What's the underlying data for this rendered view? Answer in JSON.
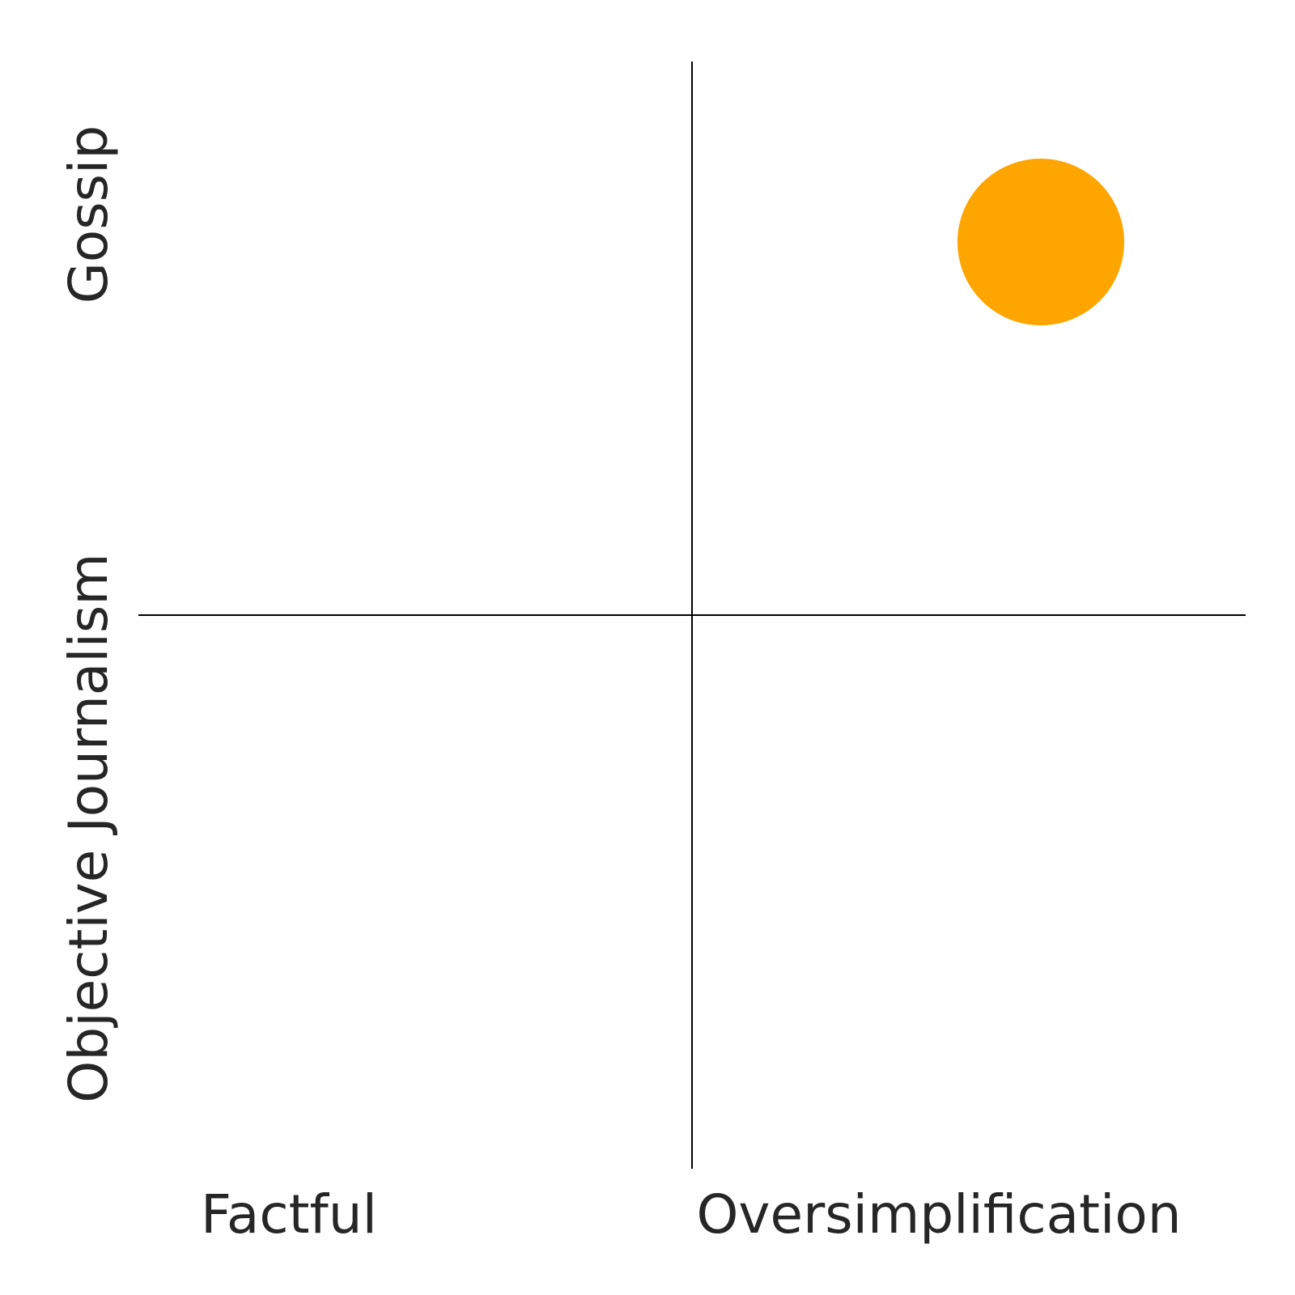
{
  "chart_data": {
    "type": "scatter",
    "title": "",
    "xlabel": "",
    "ylabel": "",
    "xlim": [
      0,
      1
    ],
    "ylim": [
      0,
      1
    ],
    "grid": false,
    "quadrant_labels": {
      "x_low": "Factful",
      "x_high": "Oversimplification",
      "y_low": "Objective Journalism",
      "y_high": "Gossip"
    },
    "points": [
      {
        "x": 0.815,
        "y": 0.837,
        "color": "#FFA500"
      }
    ]
  }
}
